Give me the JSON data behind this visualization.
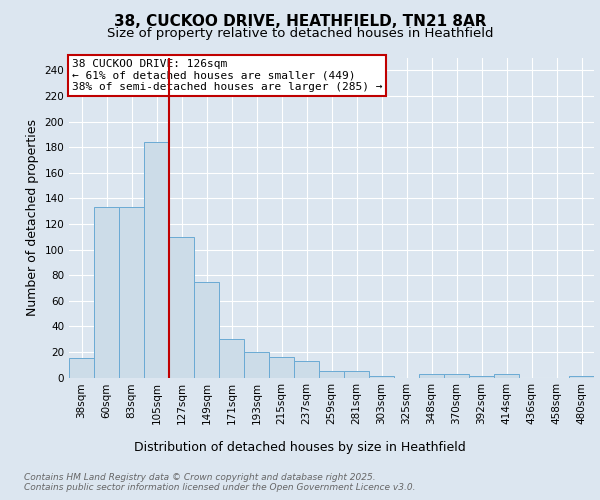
{
  "title1": "38, CUCKOO DRIVE, HEATHFIELD, TN21 8AR",
  "title2": "Size of property relative to detached houses in Heathfield",
  "xlabel": "Distribution of detached houses by size in Heathfield",
  "ylabel": "Number of detached properties",
  "categories": [
    "38sqm",
    "60sqm",
    "83sqm",
    "105sqm",
    "127sqm",
    "149sqm",
    "171sqm",
    "193sqm",
    "215sqm",
    "237sqm",
    "259sqm",
    "281sqm",
    "303sqm",
    "325sqm",
    "348sqm",
    "370sqm",
    "392sqm",
    "414sqm",
    "436sqm",
    "458sqm",
    "480sqm"
  ],
  "values": [
    15,
    133,
    133,
    184,
    110,
    75,
    30,
    20,
    16,
    13,
    5,
    5,
    1,
    0,
    3,
    3,
    1,
    3,
    0,
    0,
    1
  ],
  "bar_color": "#ccdce8",
  "bar_edge_color": "#6aaad4",
  "vline_x_idx": 4,
  "vline_color": "#c00000",
  "annotation_text": "38 CUCKOO DRIVE: 126sqm\n← 61% of detached houses are smaller (449)\n38% of semi-detached houses are larger (285) →",
  "annotation_box_color": "#ffffff",
  "annotation_edge_color": "#c00000",
  "ylim": [
    0,
    250
  ],
  "yticks": [
    0,
    20,
    40,
    60,
    80,
    100,
    120,
    140,
    160,
    180,
    200,
    220,
    240
  ],
  "bg_color": "#dce6f0",
  "plot_bg_color": "#dce6f0",
  "footer1": "Contains HM Land Registry data © Crown copyright and database right 2025.",
  "footer2": "Contains public sector information licensed under the Open Government Licence v3.0.",
  "title_fontsize": 11,
  "subtitle_fontsize": 9.5,
  "axis_label_fontsize": 9,
  "tick_fontsize": 7.5,
  "annotation_fontsize": 8,
  "footer_fontsize": 6.5
}
